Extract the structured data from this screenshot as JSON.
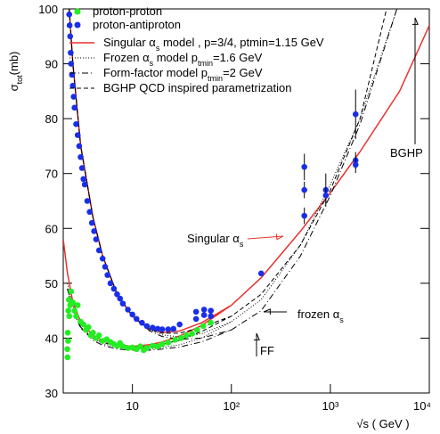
{
  "chart_data": {
    "type": "scatter",
    "ylabel": [
      "σ",
      "tot",
      "(mb)"
    ],
    "xlabel": [
      "√s ( GeV )"
    ],
    "xscale": "log",
    "xlim": [
      2,
      10000
    ],
    "ylim": [
      30,
      100
    ],
    "xticks": [
      10,
      {
        "value": 100,
        "label": "10²"
      },
      {
        "value": 1000,
        "label": "10³"
      },
      {
        "value": 10000,
        "label": "10⁴"
      }
    ],
    "yticks": [
      30,
      40,
      50,
      60,
      70,
      80,
      90,
      100
    ],
    "series": [
      {
        "name": [
          "proton-proton"
        ],
        "color": "#22ee22",
        "x": [
          2.2,
          2.21,
          2.22,
          2.24,
          2.25,
          2.28,
          2.3,
          2.35,
          2.4,
          2.5,
          2.6,
          2.7,
          2.8,
          3.0,
          3.2,
          3.4,
          3.6,
          3.8,
          4.0,
          4.3,
          4.6,
          5.0,
          5.5,
          6.0,
          6.5,
          7,
          7.5,
          8,
          9,
          10,
          11,
          12,
          13,
          14,
          16,
          18,
          20,
          23,
          27,
          31,
          35,
          40,
          45,
          52,
          62
        ],
        "values": [
          38,
          36.5,
          41,
          39.5,
          45,
          47,
          44,
          46,
          48.5,
          46.5,
          45,
          44,
          46,
          43,
          42.5,
          41.5,
          42,
          40.5,
          41,
          40,
          40.5,
          39.5,
          39.8,
          39.3,
          38.9,
          38.6,
          39.1,
          38.5,
          38.2,
          38.3,
          38,
          38.5,
          37.8,
          38.2,
          38.6,
          38.5,
          38.9,
          39.2,
          39.7,
          40,
          40.5,
          40.8,
          41.5,
          42.2,
          42.8
        ]
      },
      {
        "name": [
          "proton-antiproton"
        ],
        "color": "#1a2ee8",
        "x": [
          2.3,
          2.32,
          2.35,
          2.38,
          2.4,
          2.45,
          2.5,
          2.55,
          2.6,
          2.7,
          2.8,
          2.9,
          3.0,
          3.1,
          3.2,
          3.3,
          3.5,
          3.7,
          3.9,
          4.1,
          4.3,
          4.6,
          5.0,
          5.3,
          5.6,
          6.0,
          6.5,
          7.0,
          7.5,
          8.0,
          9,
          10,
          11,
          12.5,
          14,
          16,
          18,
          20,
          23,
          26,
          30,
          44,
          53,
          62,
          44,
          53,
          62,
          200,
          546,
          546,
          546,
          900,
          900,
          1800,
          1800,
          1800
        ],
        "values": [
          99,
          97,
          95,
          92,
          90,
          88,
          86,
          84,
          82,
          79,
          77,
          75,
          73,
          71,
          69,
          68,
          65,
          63,
          61,
          59.5,
          58,
          56,
          54.5,
          53,
          51.5,
          50,
          49,
          48,
          47.2,
          46.3,
          45.2,
          44.3,
          43.5,
          42.8,
          42.2,
          41.9,
          41.7,
          41.6,
          41.6,
          41.7,
          42.5,
          43.5,
          44.2,
          45,
          44.8,
          45.2,
          44,
          51.8,
          71.2,
          67,
          62.3,
          67,
          66,
          80.8,
          72.4,
          71.6
        ],
        "errors": [
          null,
          null,
          null,
          null,
          null,
          null,
          null,
          null,
          null,
          null,
          null,
          null,
          null,
          null,
          null,
          null,
          null,
          null,
          null,
          null,
          null,
          null,
          null,
          null,
          null,
          null,
          null,
          null,
          null,
          null,
          null,
          null,
          null,
          null,
          null,
          null,
          null,
          null,
          null,
          null,
          null,
          null,
          null,
          null,
          null,
          null,
          null,
          null,
          2.4,
          1.5,
          1.5,
          3,
          1.5,
          4.5,
          1.5,
          1.5
        ]
      }
    ],
    "curves": [
      {
        "name": [
          "Singular α",
          "s",
          " model , p=3/4, ptmin=1.15 GeV"
        ],
        "color": "#e8322c",
        "style": "solid",
        "x": [
          2.3,
          2.5,
          3,
          4,
          5,
          7,
          10,
          15,
          20,
          30,
          50,
          100,
          200,
          500,
          1000,
          2000,
          5000,
          10000,
          null,
          2,
          2.2,
          2.5,
          3,
          4,
          5,
          7,
          10,
          15,
          20,
          30,
          50,
          100
        ],
        "values": [
          100,
          90,
          75,
          62,
          55,
          48,
          44,
          41.7,
          41,
          41.3,
          42.8,
          46,
          51,
          59.5,
          66.5,
          74,
          85,
          97,
          null,
          58,
          52,
          46.5,
          43,
          40.5,
          39.5,
          38.8,
          38.5,
          38.8,
          39.3,
          40.4,
          42.3,
          46
        ]
      },
      {
        "name": [
          "Frozen α",
          "s",
          " model  p",
          "tmin",
          "=1.6 GeV"
        ],
        "color": "#000000",
        "style": "dotted",
        "x": [
          2.3,
          2.5,
          3,
          4,
          5,
          7,
          10,
          15,
          20,
          30,
          50,
          100,
          200,
          500,
          1000,
          2000,
          4700,
          null,
          2.2,
          2.5,
          3,
          4,
          5,
          7,
          10,
          15,
          20,
          30,
          50,
          100
        ],
        "values": [
          100,
          90,
          75,
          62,
          55,
          48,
          44,
          41.5,
          40.6,
          40.2,
          40.8,
          43,
          47,
          57,
          68,
          80,
          100,
          null,
          50,
          46,
          42.5,
          40,
          39,
          38.3,
          38,
          38,
          38.3,
          38.8,
          40,
          43
        ]
      },
      {
        "name": [
          "Form-factor model p",
          "tmin",
          "=2 GeV"
        ],
        "color": "#000000",
        "style": "dashdot",
        "x": [
          2.3,
          2.5,
          3,
          4,
          5,
          7,
          10,
          15,
          20,
          30,
          50,
          100,
          200,
          500,
          1000,
          2000,
          4700,
          null,
          2.2,
          2.5,
          3,
          4,
          5,
          7,
          10,
          15,
          20,
          30,
          50,
          100
        ],
        "values": [
          100,
          90,
          75,
          62,
          55,
          48,
          44,
          41.3,
          40.3,
          39.8,
          40,
          41.5,
          45,
          55,
          66,
          79,
          100,
          null,
          49,
          45.5,
          42,
          39.6,
          38.7,
          38,
          37.8,
          37.8,
          38,
          38.4,
          39.3,
          41.5
        ]
      },
      {
        "name": [
          "BGHP QCD inspired parametrization"
        ],
        "color": "#000000",
        "style": "dashed",
        "x": [
          2.3,
          2.5,
          3,
          4,
          5,
          7,
          10,
          15,
          20,
          30,
          50,
          100,
          200,
          500,
          1000,
          2000,
          3700,
          null,
          2.2,
          2.5,
          3,
          4,
          5,
          7,
          10,
          15,
          20,
          30,
          50,
          100
        ],
        "values": [
          100,
          90,
          75,
          62,
          55,
          48,
          44,
          41.6,
          40.9,
          40.9,
          42,
          44,
          48,
          57,
          67,
          80,
          100,
          null,
          49,
          45,
          41.8,
          40,
          39.2,
          38.6,
          38.3,
          38.5,
          38.9,
          39.6,
          41.2,
          44
        ]
      }
    ],
    "annotations": [
      {
        "text": [
          "Singular α",
          "s"
        ],
        "color": "#e8322c"
      },
      {
        "text": [
          "frozen α",
          "s"
        ],
        "color": "#000000"
      },
      {
        "text": [
          "FF"
        ],
        "color": "#000000"
      },
      {
        "text": [
          "BGHP"
        ],
        "color": "#000000"
      }
    ]
  }
}
